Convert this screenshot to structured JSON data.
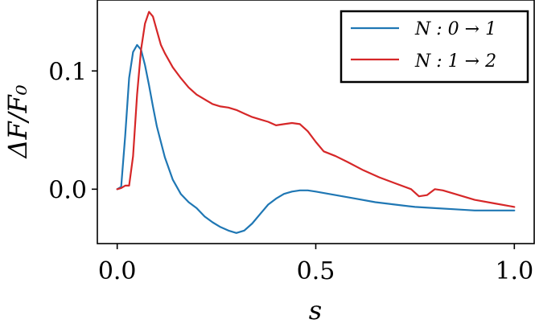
{
  "chart_data": {
    "type": "line",
    "xlabel": "s",
    "ylabel": "ΔF/F₀",
    "xlim": [
      -0.05,
      1.05
    ],
    "ylim": [
      -0.046,
      0.16
    ],
    "xticks": [
      0.0,
      0.5,
      1.0
    ],
    "xtick_labels": [
      "0.0",
      "0.5",
      "1.0"
    ],
    "yticks": [
      0.0,
      0.1
    ],
    "ytick_labels": [
      "0.0",
      "0.1"
    ],
    "grid": false,
    "legend_position": "upper-right",
    "series": [
      {
        "name": "N : 0 → 1",
        "color": "#1f77b4",
        "x": [
          0.0,
          0.01,
          0.02,
          0.03,
          0.04,
          0.05,
          0.06,
          0.07,
          0.08,
          0.09,
          0.1,
          0.12,
          0.14,
          0.16,
          0.18,
          0.2,
          0.22,
          0.24,
          0.26,
          0.28,
          0.3,
          0.32,
          0.34,
          0.36,
          0.38,
          0.4,
          0.42,
          0.44,
          0.46,
          0.48,
          0.5,
          0.55,
          0.6,
          0.65,
          0.7,
          0.75,
          0.8,
          0.85,
          0.9,
          0.95,
          1.0
        ],
        "y": [
          0.0,
          0.002,
          0.045,
          0.094,
          0.116,
          0.122,
          0.118,
          0.105,
          0.088,
          0.07,
          0.053,
          0.027,
          0.008,
          -0.004,
          -0.011,
          -0.016,
          -0.023,
          -0.028,
          -0.032,
          -0.035,
          -0.037,
          -0.035,
          -0.029,
          -0.021,
          -0.013,
          -0.008,
          -0.004,
          -0.002,
          -0.001,
          -0.001,
          -0.002,
          -0.005,
          -0.008,
          -0.011,
          -0.013,
          -0.015,
          -0.016,
          -0.017,
          -0.018,
          -0.018,
          -0.018
        ]
      },
      {
        "name": "N : 1 → 2",
        "color": "#d62728",
        "x": [
          0.0,
          0.01,
          0.02,
          0.03,
          0.04,
          0.05,
          0.06,
          0.07,
          0.08,
          0.09,
          0.1,
          0.11,
          0.12,
          0.14,
          0.16,
          0.18,
          0.2,
          0.22,
          0.24,
          0.26,
          0.28,
          0.3,
          0.32,
          0.34,
          0.36,
          0.38,
          0.4,
          0.42,
          0.44,
          0.46,
          0.48,
          0.5,
          0.52,
          0.55,
          0.58,
          0.62,
          0.66,
          0.7,
          0.74,
          0.76,
          0.78,
          0.8,
          0.82,
          0.85,
          0.9,
          0.95,
          1.0
        ],
        "y": [
          0.0,
          0.001,
          0.003,
          0.003,
          0.028,
          0.08,
          0.118,
          0.14,
          0.15,
          0.146,
          0.134,
          0.122,
          0.115,
          0.103,
          0.094,
          0.086,
          0.08,
          0.076,
          0.072,
          0.07,
          0.069,
          0.067,
          0.064,
          0.061,
          0.059,
          0.057,
          0.054,
          0.055,
          0.056,
          0.055,
          0.049,
          0.04,
          0.032,
          0.028,
          0.023,
          0.016,
          0.01,
          0.005,
          0.0,
          -0.006,
          -0.005,
          0.0,
          -0.001,
          -0.004,
          -0.009,
          -0.012,
          -0.015
        ]
      }
    ]
  }
}
